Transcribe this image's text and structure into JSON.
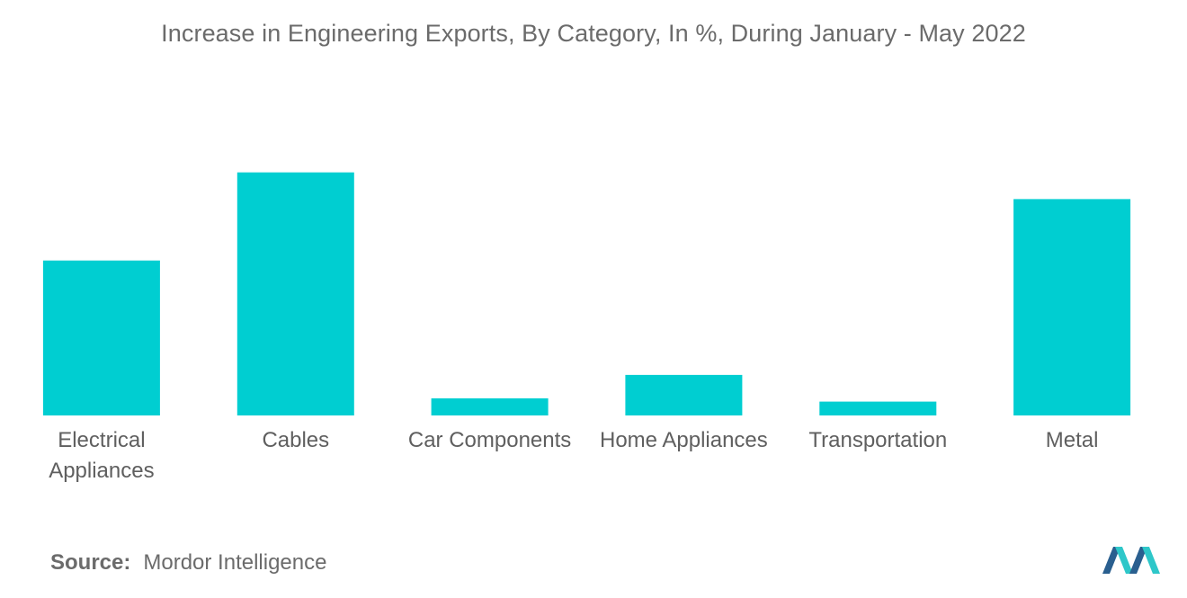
{
  "title": "Increase in Engineering Exports, By Category, In %, During January - May 2022",
  "source": {
    "label": "Source:",
    "value": "Mordor Intelligence"
  },
  "colors": {
    "bar": "#00CED1",
    "logo_dark": "#2a5f8f",
    "logo_light": "#2ec7c9"
  },
  "chart_data": {
    "type": "bar",
    "title": "Increase in Engineering Exports, By Category, In %, During January - May 2022",
    "categories": [
      "Electrical Appliances",
      "Cables",
      "Car Components",
      "Home Appliances",
      "Transportation",
      "Metal"
    ],
    "category_lines": [
      [
        "Electrical",
        "Appliances"
      ],
      [
        "Cables"
      ],
      [
        "Car Components"
      ],
      [
        "Home Appliances"
      ],
      [
        "Transportation"
      ],
      [
        "Metal"
      ]
    ],
    "values": [
      29,
      45.5,
      3.2,
      7.6,
      2.6,
      40.5
    ],
    "ylim": [
      0,
      50
    ],
    "grid": false,
    "legend": "none",
    "xlabel": "",
    "ylabel": ""
  }
}
